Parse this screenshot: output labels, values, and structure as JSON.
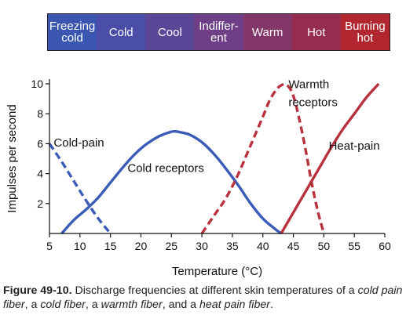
{
  "banner": {
    "bands": [
      {
        "label": "Freezing\ncold",
        "color": "#3a56b0"
      },
      {
        "label": "Cold",
        "color": "#4b4ea8"
      },
      {
        "label": "Cool",
        "color": "#5a4798"
      },
      {
        "label": "Indiffer-\nent",
        "color": "#6e3f86"
      },
      {
        "label": "Warm",
        "color": "#833668"
      },
      {
        "label": "Hot",
        "color": "#952d4e"
      },
      {
        "label": "Burning\nhot",
        "color": "#b1262f"
      }
    ]
  },
  "chart_data": {
    "type": "line",
    "xlabel": "Temperature (°C)",
    "ylabel": "Impulses per second",
    "xlim": [
      5,
      60
    ],
    "ylim": [
      0,
      10
    ],
    "xticks": [
      5,
      10,
      15,
      20,
      25,
      30,
      35,
      40,
      45,
      50,
      55,
      60
    ],
    "yticks": [
      2,
      4,
      6,
      8,
      10
    ],
    "grid": false,
    "series": [
      {
        "name": "Cold-pain",
        "color": "#3a5cb8",
        "dashed": true,
        "x": [
          5,
          7,
          9,
          11,
          13,
          15
        ],
        "y": [
          6,
          4.8,
          3.5,
          2.2,
          1,
          0
        ]
      },
      {
        "name": "Cold receptors",
        "color": "#3a5cb8",
        "dashed": false,
        "x": [
          7,
          9,
          11,
          13,
          15,
          17,
          19,
          21,
          23,
          25,
          26,
          28,
          30,
          32,
          34,
          36,
          38,
          40,
          42,
          43
        ],
        "y": [
          0,
          0.9,
          1.6,
          2.4,
          3.4,
          4.4,
          5.3,
          6.0,
          6.5,
          6.8,
          6.8,
          6.6,
          6.1,
          5.3,
          4.3,
          3.2,
          2.0,
          1.0,
          0.3,
          0
        ]
      },
      {
        "name": "Warmth receptors",
        "color": "#b8323e",
        "dashed": true,
        "x": [
          30,
          32,
          34,
          36,
          38,
          40,
          41,
          42,
          43,
          44,
          45,
          46,
          47,
          48,
          49,
          50
        ],
        "y": [
          0,
          1.2,
          2.4,
          4.0,
          5.9,
          7.8,
          8.8,
          9.5,
          9.9,
          9.9,
          9.2,
          7.6,
          5.6,
          3.4,
          1.5,
          0
        ]
      },
      {
        "name": "Heat-pain",
        "color": "#b8323e",
        "dashed": false,
        "x": [
          43,
          45,
          47,
          49,
          51,
          53,
          55,
          57,
          59
        ],
        "y": [
          0,
          1.4,
          2.8,
          4.2,
          5.6,
          6.9,
          8.0,
          9.1,
          10
        ]
      }
    ],
    "annotations": [
      {
        "text": "Cold-pain",
        "x": 5.7,
        "y": 5.8
      },
      {
        "text": "Cold receptors",
        "x": 17.8,
        "y": 4.1
      },
      {
        "text": "Warmth",
        "x": 44.2,
        "y": 9.7
      },
      {
        "text": "receptors",
        "x": 44.2,
        "y": 8.5
      },
      {
        "text": "Heat-pain",
        "x": 50.8,
        "y": 5.6
      }
    ]
  },
  "caption": {
    "label": "Figure 49-10.",
    "text1": " Discharge frequencies at different skin temperatures of a ",
    "t1": "cold pain fiber",
    "s1": ", a ",
    "t2": "cold fiber",
    "s2": ", a ",
    "t3": "warmth fiber",
    "s3": ", and a ",
    "t4": "heat pain fiber",
    "end": "."
  }
}
